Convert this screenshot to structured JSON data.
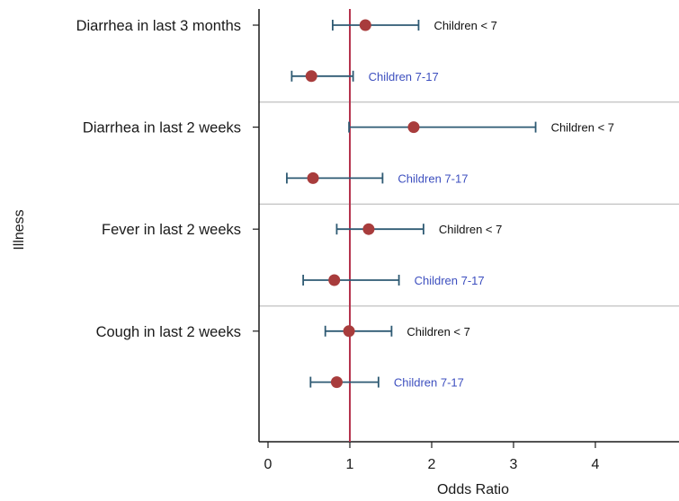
{
  "chart_data": {
    "type": "scatter",
    "subtype": "forest-plot",
    "title": "",
    "xlabel": "Odds Ratio",
    "ylabel": "Illness",
    "xlim": [
      -0.1,
      5
    ],
    "xticks": [
      0,
      1,
      2,
      3,
      4
    ],
    "reference_line": 1,
    "grid": false,
    "colors": {
      "point": "#a83c3c",
      "whisker": "#2e5a73",
      "reference": "#b5334d",
      "separator": "#b0b0b0",
      "label_lt7": "#111111",
      "label_7_17": "#3d4fbf"
    },
    "categories": [
      "Diarrhea in last 3 months",
      "Diarrhea in last 2 weeks",
      "Fever in last 2 weeks",
      "Cough in last 2 weeks"
    ],
    "groups": [
      "Children < 7",
      "Children 7-17"
    ],
    "rows": [
      {
        "category": "Diarrhea in last 3 months",
        "group": "Children < 7",
        "or": 1.19,
        "lo": 0.79,
        "hi": 1.84
      },
      {
        "category": "Diarrhea in last 3 months",
        "group": "Children 7-17",
        "or": 0.53,
        "lo": 0.29,
        "hi": 1.04
      },
      {
        "category": "Diarrhea in last 2 weeks",
        "group": "Children < 7",
        "or": 1.78,
        "lo": 0.99,
        "hi": 3.27
      },
      {
        "category": "Diarrhea in last 2 weeks",
        "group": "Children 7-17",
        "or": 0.55,
        "lo": 0.23,
        "hi": 1.4
      },
      {
        "category": "Fever in last 2 weeks",
        "group": "Children < 7",
        "or": 1.23,
        "lo": 0.84,
        "hi": 1.9
      },
      {
        "category": "Fever in last 2 weeks",
        "group": "Children 7-17",
        "or": 0.81,
        "lo": 0.43,
        "hi": 1.6
      },
      {
        "category": "Cough in last 2 weeks",
        "group": "Children < 7",
        "or": 0.99,
        "lo": 0.7,
        "hi": 1.51
      },
      {
        "category": "Cough in last 2 weeks",
        "group": "Children 7-17",
        "or": 0.84,
        "lo": 0.52,
        "hi": 1.35
      }
    ]
  }
}
